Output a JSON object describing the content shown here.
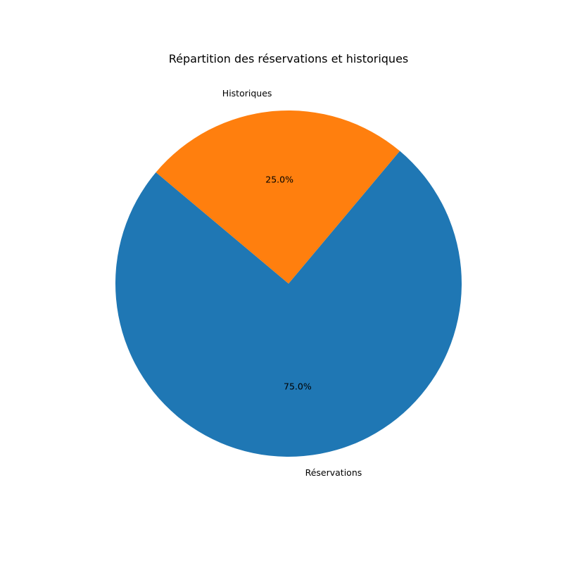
{
  "chart_data": {
    "type": "pie",
    "title": "Répartition des réservations et historiques",
    "start_angle_deg": 140,
    "direction": "counterclockwise",
    "slices": [
      {
        "label": "Réservations",
        "value": 75,
        "pct_label": "75.0%",
        "color": "#1f77b4"
      },
      {
        "label": "Historiques",
        "value": 25,
        "pct_label": "25.0%",
        "color": "#ff7f0e"
      }
    ]
  }
}
